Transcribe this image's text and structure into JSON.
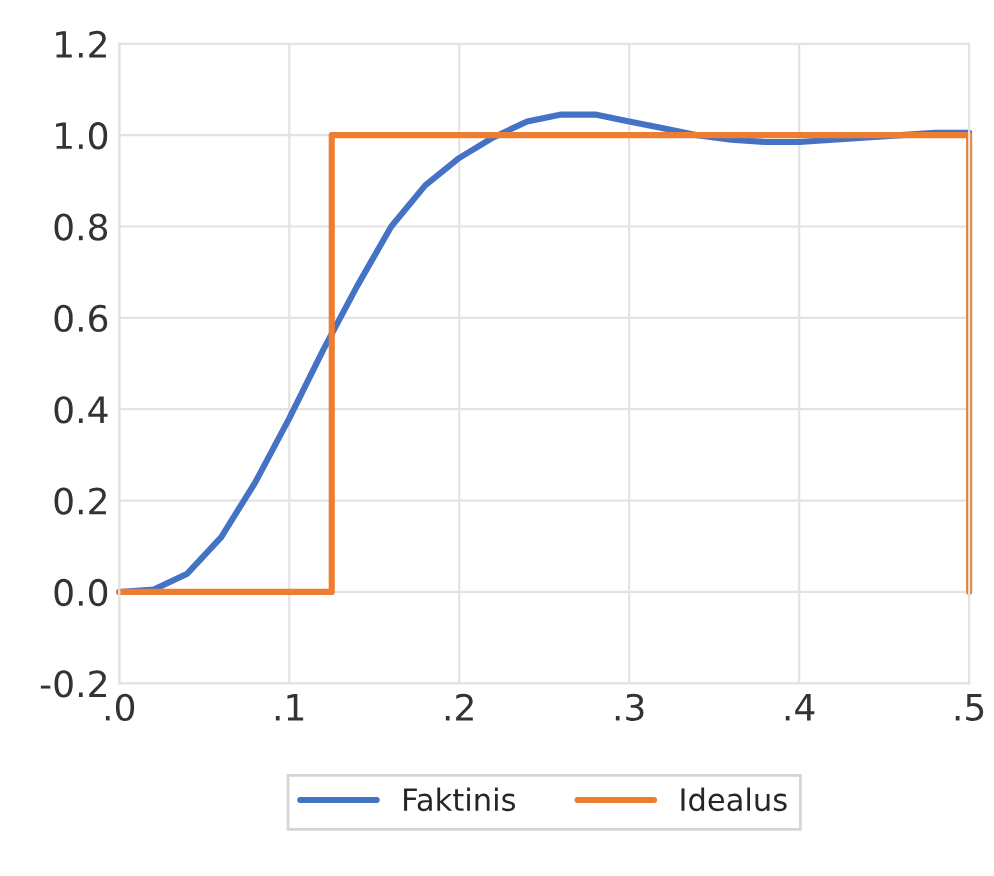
{
  "chart_data": {
    "type": "line",
    "xlim": [
      0,
      0.5
    ],
    "ylim": [
      -0.2,
      1.2
    ],
    "xticks": [
      {
        "value": 0,
        "label": ".0"
      },
      {
        "value": 0.1,
        "label": ".1"
      },
      {
        "value": 0.2,
        "label": ".2"
      },
      {
        "value": 0.3,
        "label": ".3"
      },
      {
        "value": 0.4,
        "label": ".4"
      },
      {
        "value": 0.5,
        "label": ".5"
      }
    ],
    "yticks": [
      {
        "value": -0.2,
        "label": "-0.2"
      },
      {
        "value": 0,
        "label": "0.0"
      },
      {
        "value": 0.2,
        "label": "0.2"
      },
      {
        "value": 0.4,
        "label": "0.4"
      },
      {
        "value": 0.6,
        "label": "0.6"
      },
      {
        "value": 0.8,
        "label": "0.8"
      },
      {
        "value": 1,
        "label": "1.0"
      },
      {
        "value": 1.2,
        "label": "1.2"
      }
    ],
    "grid": true,
    "legend": "bottom",
    "marker": "none",
    "line_style": "solid",
    "series": [
      {
        "name": "Faktinis",
        "color": "#4472c4",
        "x": [
          0,
          0.02,
          0.04,
          0.06,
          0.08,
          0.1,
          0.12,
          0.14,
          0.16,
          0.18,
          0.2,
          0.22,
          0.24,
          0.26,
          0.28,
          0.3,
          0.32,
          0.34,
          0.36,
          0.38,
          0.4,
          0.42,
          0.44,
          0.46,
          0.48,
          0.5
        ],
        "values": [
          0,
          0.005,
          0.04,
          0.12,
          0.24,
          0.38,
          0.53,
          0.67,
          0.8,
          0.89,
          0.95,
          0.995,
          1.03,
          1.045,
          1.045,
          1.03,
          1.015,
          1.0,
          0.99,
          0.985,
          0.985,
          0.99,
          0.995,
          1.0,
          1.005,
          1.005
        ]
      },
      {
        "name": "Idealus",
        "color": "#ed7d31",
        "x": [
          0,
          0.125,
          0.125,
          0.5,
          0.5
        ],
        "values": [
          0,
          0,
          1,
          1,
          0
        ]
      }
    ]
  }
}
